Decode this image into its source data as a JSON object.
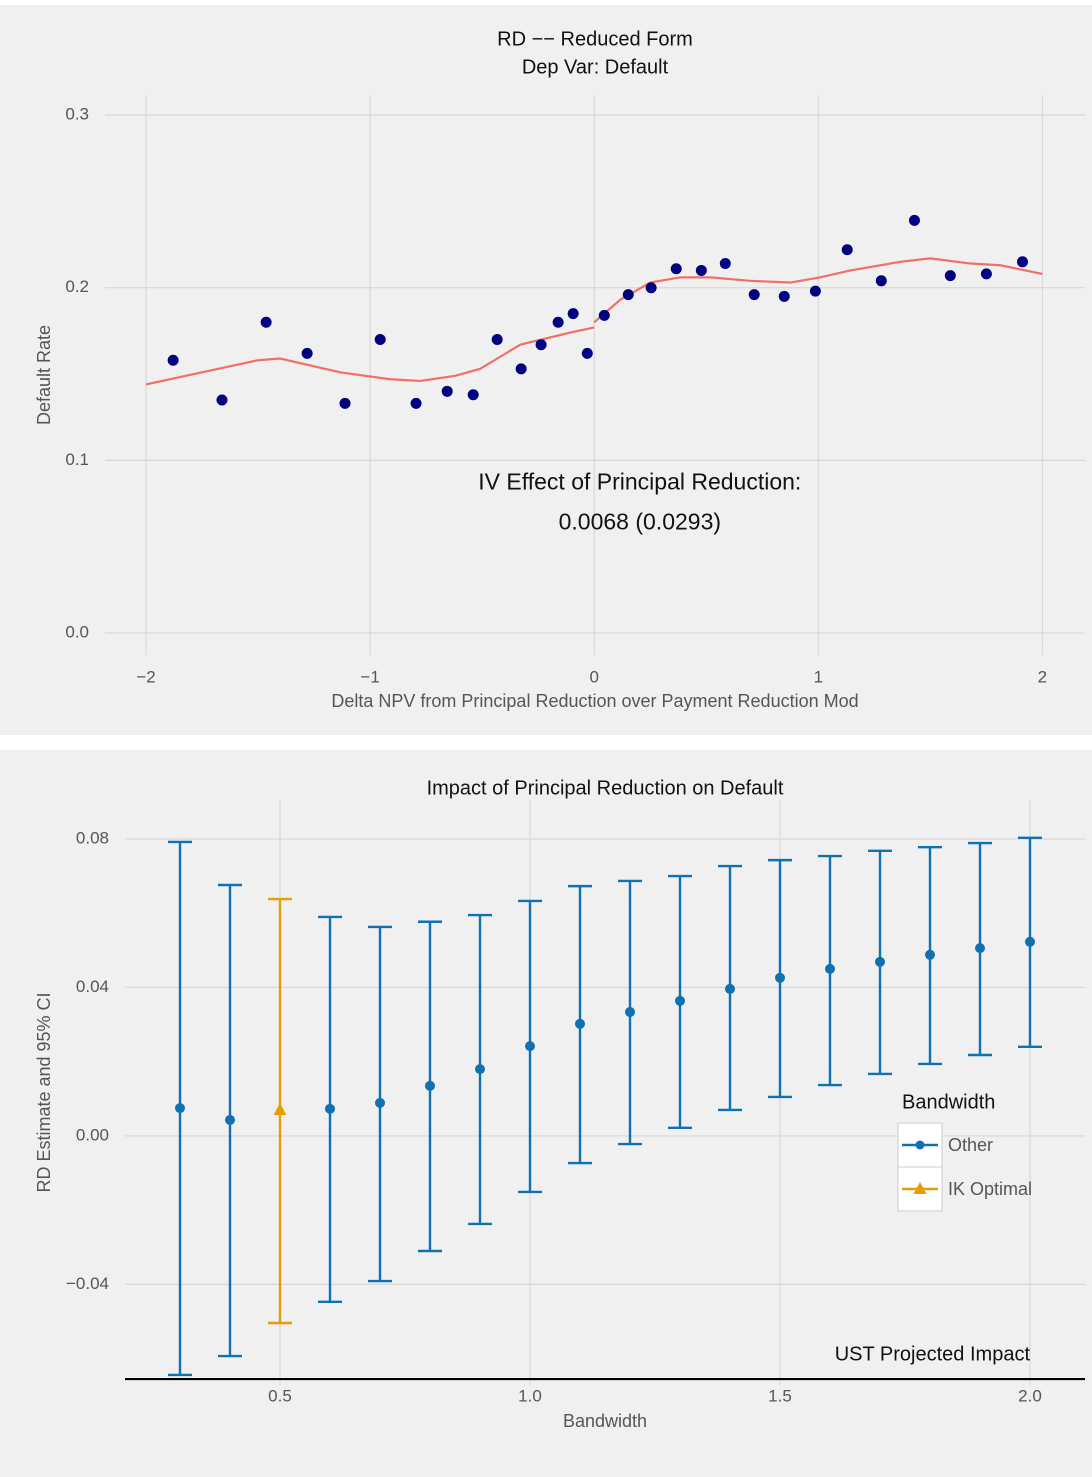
{
  "chart_data": [
    {
      "type": "scatter",
      "title": "RD −− Reduced Form",
      "subtitle": "Dep Var: Default",
      "xlabel": "Delta NPV from Principal Reduction over Payment Reduction Mod",
      "ylabel": "Default Rate",
      "color": "#000080",
      "x": [
        -1.879,
        -1.661,
        -1.464,
        -1.281,
        -1.112,
        -0.955,
        -0.795,
        -0.656,
        -0.54,
        -0.433,
        -0.326,
        -0.237,
        -0.161,
        -0.094,
        -0.031,
        0.045,
        0.152,
        0.254,
        0.366,
        0.478,
        0.585,
        0.714,
        0.848,
        0.987,
        1.129,
        1.281,
        1.429,
        1.589,
        1.75,
        1.911
      ],
      "values": [
        0.158,
        0.135,
        0.18,
        0.162,
        0.133,
        0.17,
        0.133,
        0.14,
        0.138,
        0.17,
        0.153,
        0.167,
        0.18,
        0.185,
        0.162,
        0.184,
        0.196,
        0.2,
        0.211,
        0.21,
        0.214,
        0.196,
        0.195,
        0.198,
        0.222,
        0.204,
        0.239,
        0.207,
        0.208,
        0.215
      ],
      "fit_color": "#f07068",
      "fit_lines": [
        {
          "x": [
            -2,
            -1.714,
            -1.5,
            -1.402,
            -1.134,
            -0.911,
            -0.777,
            -0.621,
            -0.509,
            -0.33,
            -0.107,
            0
          ],
          "values": [
            0.144,
            0.152,
            0.158,
            0.159,
            0.151,
            0.147,
            0.146,
            0.149,
            0.153,
            0.167,
            0.174,
            0.177
          ]
        },
        {
          "x": [
            0,
            0.116,
            0.25,
            0.384,
            0.518,
            0.696,
            0.875,
            1.009,
            1.143,
            1.366,
            1.5,
            1.679,
            1.813,
            2
          ],
          "values": [
            0.18,
            0.193,
            0.203,
            0.206,
            0.206,
            0.204,
            0.203,
            0.206,
            0.21,
            0.215,
            0.217,
            0.214,
            0.213,
            0.208
          ]
        }
      ],
      "annotations": [
        "IV Effect of Principal Reduction:",
        "0.0068 (0.0293)"
      ],
      "xlim": [
        -2.183,
        2.19
      ],
      "ylim": [
        -0.0127,
        0.3116
      ],
      "xticks": [
        {
          "value": -2,
          "label": "−2"
        },
        {
          "value": -1,
          "label": "−1"
        },
        0,
        1,
        2
      ],
      "yticks": [
        {
          "value": 0,
          "label": "0.0"
        },
        0.1,
        0.2,
        0.3
      ],
      "grid": true
    },
    {
      "type": "errorbar",
      "title": "Impact of Principal Reduction on Default",
      "xlabel": "Bandwidth",
      "ylabel": "RD Estimate and 95% CI",
      "legend_title": "Bandwidth",
      "legend": "right",
      "series": [
        {
          "name": "Other",
          "color": "#1070b0",
          "marker": "circle",
          "x": [
            0.3,
            0.4,
            0.6,
            0.7,
            0.8,
            0.9,
            1.0,
            1.1,
            1.2,
            1.3,
            1.4,
            1.5,
            1.6,
            1.7,
            1.8,
            1.9,
            2.0
          ],
          "values": [
            0.0075,
            0.0043,
            0.0073,
            0.0089,
            0.0135,
            0.018,
            0.0242,
            0.0302,
            0.0334,
            0.0364,
            0.0396,
            0.0426,
            0.045,
            0.0469,
            0.0488,
            0.0506,
            0.0523
          ],
          "lower": [
            -0.0644,
            -0.0593,
            -0.0447,
            -0.0391,
            -0.031,
            -0.0237,
            -0.0151,
            -0.0073,
            -0.0022,
            0.0022,
            0.007,
            0.0105,
            0.0137,
            0.0167,
            0.0194,
            0.0218,
            0.024
          ],
          "upper": [
            0.0792,
            0.0676,
            0.059,
            0.0563,
            0.0577,
            0.0595,
            0.0633,
            0.0673,
            0.0687,
            0.07,
            0.0727,
            0.0743,
            0.0754,
            0.0768,
            0.0778,
            0.0789,
            0.0803
          ]
        },
        {
          "name": "IK Optimal",
          "color": "#e69f00",
          "marker": "triangle",
          "x": [
            0.5
          ],
          "values": [
            0.007
          ],
          "lower": [
            -0.0504
          ],
          "upper": [
            0.0638
          ]
        }
      ],
      "reference_line": {
        "label": "UST Projected Impact",
        "value": -0.0655,
        "color": "#000000"
      },
      "xlim": [
        0.19,
        2.11
      ],
      "ylim": [
        -0.0671,
        0.0905
      ],
      "xticks": [
        0.5,
        {
          "value": 1,
          "label": "1.0"
        },
        1.5,
        {
          "value": 2,
          "label": "2.0"
        }
      ],
      "yticks": [
        {
          "value": -0.04,
          "label": "−0.04"
        },
        {
          "value": 0,
          "label": "0.00"
        },
        0.04,
        0.08
      ],
      "grid": true
    }
  ]
}
